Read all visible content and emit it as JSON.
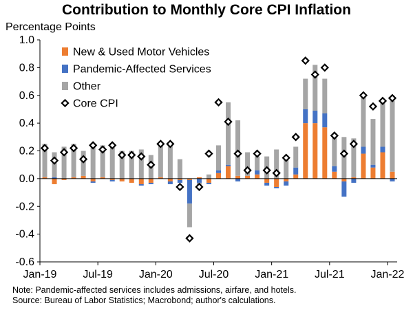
{
  "chart_data": {
    "type": "bar",
    "stacked": true,
    "title": "Contribution to Monthly Core CPI Inflation",
    "ylabel": "Percentage Points",
    "ylim": [
      -0.6,
      1.0
    ],
    "yticks": [
      "-0.6",
      "-0.4",
      "-0.2",
      "0.0",
      "0.2",
      "0.4",
      "0.6",
      "0.8",
      "1.0"
    ],
    "ytick_values": [
      -0.6,
      -0.4,
      -0.2,
      0.0,
      0.2,
      0.4,
      0.6,
      0.8,
      1.0
    ],
    "x_tick_labels": [
      "Jan-19",
      "Jul-19",
      "Jan-20",
      "Jul-20",
      "Jan-21",
      "Jul-21",
      "Jan-22"
    ],
    "x_tick_months": [
      0,
      6,
      12,
      18,
      24,
      30,
      36
    ],
    "categories": [
      "2019-01",
      "2019-02",
      "2019-03",
      "2019-04",
      "2019-05",
      "2019-06",
      "2019-07",
      "2019-08",
      "2019-09",
      "2019-10",
      "2019-11",
      "2019-12",
      "2020-01",
      "2020-02",
      "2020-03",
      "2020-04",
      "2020-05",
      "2020-06",
      "2020-07",
      "2020-08",
      "2020-09",
      "2020-10",
      "2020-11",
      "2020-12",
      "2021-01",
      "2021-02",
      "2021-03",
      "2021-04",
      "2021-05",
      "2021-06",
      "2021-07",
      "2021-08",
      "2021-09",
      "2021-10",
      "2021-11",
      "2021-12",
      "2022-01"
    ],
    "legend_position": "top-left",
    "series": [
      {
        "name": "New & Used Motor Vehicles",
        "kind": "bar",
        "color": "#ED7D31",
        "values": [
          0.01,
          -0.04,
          -0.01,
          0.01,
          0.02,
          -0.02,
          0.01,
          -0.01,
          -0.02,
          -0.03,
          -0.04,
          -0.03,
          0.01,
          -0.02,
          -0.01,
          -0.01,
          0.01,
          -0.03,
          0.04,
          0.09,
          0.02,
          0.02,
          0.03,
          -0.03,
          -0.06,
          -0.02,
          0.03,
          0.4,
          0.4,
          0.37,
          0.05,
          -0.02,
          0.01,
          0.18,
          0.08,
          0.19,
          0.05
        ]
      },
      {
        "name": "Pandemic-Affected Services",
        "kind": "bar",
        "color": "#4472C4",
        "values": [
          0.0,
          0.01,
          0.0,
          0.0,
          0.0,
          -0.01,
          0.0,
          -0.01,
          0.0,
          0.0,
          -0.01,
          -0.01,
          0.0,
          -0.02,
          -0.02,
          -0.17,
          -0.03,
          -0.01,
          0.02,
          0.01,
          -0.02,
          0.0,
          0.03,
          -0.02,
          -0.01,
          -0.03,
          0.05,
          0.1,
          0.09,
          0.1,
          0.04,
          -0.11,
          -0.03,
          0.05,
          0.02,
          0.04,
          -0.02
        ]
      },
      {
        "name": "Other",
        "kind": "bar",
        "color": "#A5A5A5",
        "values": [
          0.24,
          0.18,
          0.23,
          0.24,
          0.18,
          0.24,
          0.23,
          0.24,
          0.2,
          0.2,
          0.21,
          0.17,
          0.25,
          0.24,
          0.14,
          -0.17,
          -0.03,
          0.03,
          0.18,
          0.45,
          0.4,
          0.17,
          0.1,
          0.16,
          0.21,
          0.15,
          0.15,
          0.22,
          0.33,
          0.25,
          0.22,
          0.3,
          0.28,
          0.37,
          0.33,
          0.33,
          0.51
        ]
      },
      {
        "name": "Core CPI",
        "kind": "marker",
        "color": "#000000",
        "values": [
          0.22,
          0.13,
          0.19,
          0.22,
          0.14,
          0.24,
          0.21,
          0.24,
          0.17,
          0.17,
          0.16,
          0.1,
          0.25,
          0.25,
          -0.06,
          -0.43,
          -0.06,
          0.18,
          0.55,
          0.41,
          0.18,
          0.06,
          0.18,
          0.06,
          0.04,
          0.15,
          0.3,
          0.85,
          0.75,
          0.8,
          0.31,
          0.18,
          0.25,
          0.6,
          0.52,
          0.56,
          0.58
        ]
      }
    ]
  },
  "notes": {
    "line1": "Note: Pandemic-affected services includes admissions, airfare, and hotels.",
    "line2": "Source: Bureau of Labor Statistics; Macrobond; author's calculations."
  }
}
